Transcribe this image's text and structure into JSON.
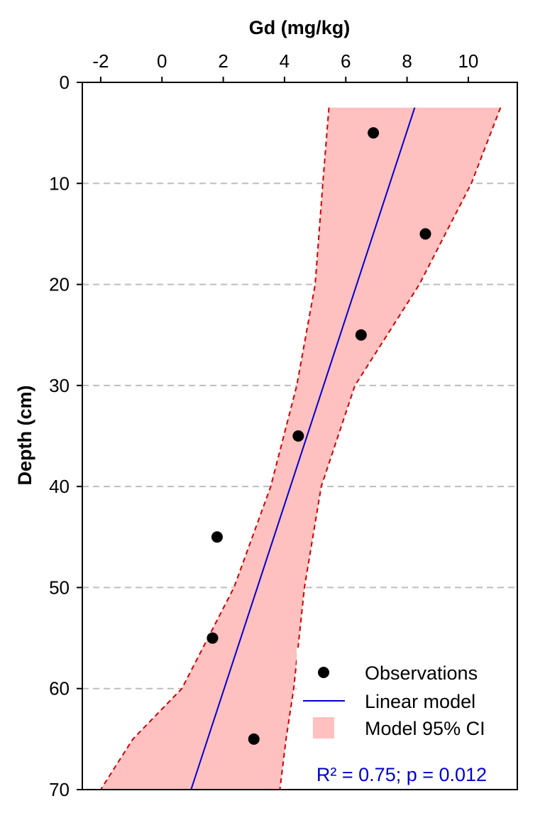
{
  "chart_data": {
    "type": "scatter",
    "xlabel": "Gd (mg/kg)",
    "ylabel": "Depth (cm)",
    "x_axis_position": "top",
    "y_axis_inverted": true,
    "xlim": [
      -2.6,
      11.6
    ],
    "ylim": [
      0,
      70
    ],
    "x_ticks": [
      -2,
      0,
      2,
      4,
      6,
      8,
      10
    ],
    "x_tick_labels": [
      "-2",
      "0",
      "2",
      "4",
      "6",
      "8",
      "10"
    ],
    "y_ticks": [
      0,
      10,
      20,
      30,
      40,
      50,
      60,
      70
    ],
    "y_tick_labels": [
      "0",
      "10",
      "20",
      "30",
      "40",
      "50",
      "60",
      "70"
    ],
    "y_gridlines": [
      10,
      20,
      30,
      40,
      50,
      60
    ],
    "grid": "horizontal dashed",
    "series": [
      {
        "name": "Observations",
        "kind": "points",
        "color": "#000000",
        "points": [
          {
            "x": 6.9,
            "y": 5
          },
          {
            "x": 8.6,
            "y": 15
          },
          {
            "x": 6.5,
            "y": 25
          },
          {
            "x": 4.45,
            "y": 35
          },
          {
            "x": 1.8,
            "y": 45
          },
          {
            "x": 1.65,
            "y": 55
          },
          {
            "x": 3.0,
            "y": 65
          }
        ]
      },
      {
        "name": "Linear model",
        "kind": "line",
        "color": "#0000cc",
        "points": [
          {
            "x": 8.25,
            "y": 2.5
          },
          {
            "x": 0.95,
            "y": 70
          }
        ]
      },
      {
        "name": "Model 95% CI",
        "kind": "band",
        "color": "#ffc0c0",
        "edge_color": "#cc0000",
        "lower": [
          {
            "x": 5.45,
            "y": 2.5
          },
          {
            "x": 5.25,
            "y": 10
          },
          {
            "x": 5.0,
            "y": 20
          },
          {
            "x": 4.4,
            "y": 30
          },
          {
            "x": 3.55,
            "y": 40
          },
          {
            "x": 2.35,
            "y": 50
          },
          {
            "x": 0.65,
            "y": 60
          },
          {
            "x": -0.95,
            "y": 65
          },
          {
            "x": -2.0,
            "y": 70
          }
        ],
        "upper": [
          {
            "x": 11.05,
            "y": 2.5
          },
          {
            "x": 10.1,
            "y": 10
          },
          {
            "x": 8.4,
            "y": 20
          },
          {
            "x": 6.3,
            "y": 30
          },
          {
            "x": 5.2,
            "y": 40
          },
          {
            "x": 4.65,
            "y": 50
          },
          {
            "x": 4.3,
            "y": 60
          },
          {
            "x": 4.05,
            "y": 65
          },
          {
            "x": 3.85,
            "y": 70
          }
        ]
      }
    ],
    "legend": {
      "placement": "bottom-right",
      "entries": [
        "Observations",
        "Linear model",
        "Model 95% CI"
      ]
    },
    "annotation": {
      "text": "R² = 0.75; p = 0.012",
      "color": "#0000cc"
    }
  }
}
